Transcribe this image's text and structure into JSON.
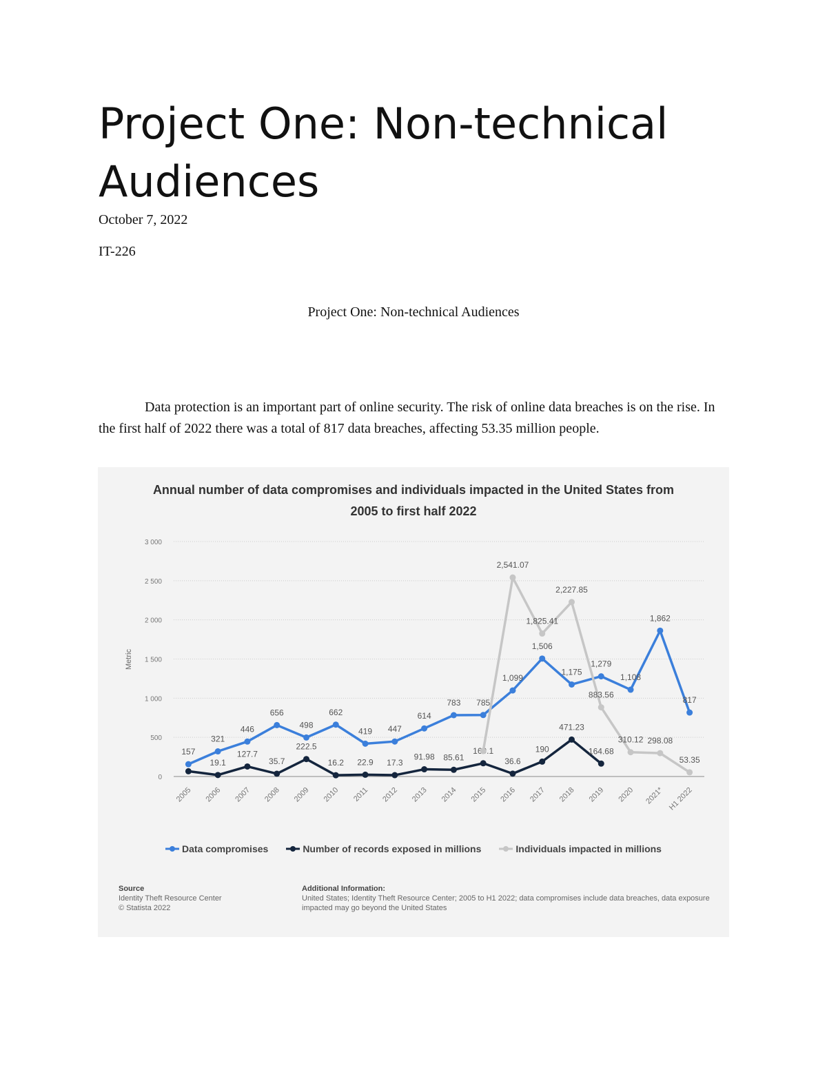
{
  "document": {
    "title": "Project One: Non-technical Audiences",
    "date": "October 7, 2022",
    "course": "IT-226",
    "heading": "Project One: Non-technical Audiences",
    "paragraph": "Data protection is an important part of online security. The risk of online data breaches is on the rise. In the first half of 2022 there was a total of 817 data breaches, affecting 53.35 million people."
  },
  "chart_data": {
    "type": "line",
    "title": "Annual number of data compromises and individuals impacted in the United States from 2005 to first half 2022",
    "y_label": "Metric",
    "categories": [
      "2005",
      "2006",
      "2007",
      "2008",
      "2009",
      "2010",
      "2011",
      "2012",
      "2013",
      "2014",
      "2015",
      "2016",
      "2017",
      "2018",
      "2019",
      "2020",
      "2021*",
      "H1 2022"
    ],
    "ylim": [
      0,
      3000
    ],
    "yticks": [
      0,
      500,
      {
        "value": 1000,
        "label": "1 000"
      },
      {
        "value": 1500,
        "label": "1 500"
      },
      {
        "value": 2000,
        "label": "2 000"
      },
      {
        "value": 2500,
        "label": "2 500"
      },
      {
        "value": 3000,
        "label": "3 000"
      }
    ],
    "grid": true,
    "series": [
      {
        "name": "Data compromises",
        "color": "#3b7fdb",
        "values": [
          157,
          321,
          446,
          656,
          498,
          662,
          419,
          447,
          614,
          783,
          785,
          1099,
          1506,
          1175,
          1279,
          1108,
          1862,
          817
        ],
        "value_labels": [
          "157",
          "321",
          "446",
          "656",
          "498",
          "662",
          "419",
          "447",
          "614",
          "783",
          "785",
          "1,099",
          "1,506",
          "1,175",
          "1,279",
          "1,108",
          "1,862",
          "817"
        ]
      },
      {
        "name": "Number of records exposed in millions",
        "color": "#14253d",
        "values": [
          66.9,
          19.1,
          127.7,
          35.7,
          222.5,
          16.2,
          22.9,
          17.3,
          91.98,
          85.61,
          169.1,
          36.6,
          190,
          471.23,
          164.68,
          null,
          null,
          null
        ],
        "value_labels": [
          null,
          "19.1",
          "127.7",
          "35.7",
          "222.5",
          "16.2",
          "22.9",
          "17.3",
          "91.98",
          "85.61",
          "169.1",
          "36.6",
          "190",
          "471.23",
          "164.68",
          null,
          null,
          null
        ]
      },
      {
        "name": "Individuals impacted in millions",
        "color": "#c6c6c6",
        "values": [
          null,
          null,
          null,
          null,
          null,
          null,
          null,
          null,
          null,
          null,
          325,
          2541.07,
          1825.41,
          2227.85,
          883.56,
          310.12,
          298.08,
          53.35
        ],
        "value_labels": [
          null,
          null,
          null,
          null,
          null,
          null,
          null,
          null,
          null,
          null,
          null,
          "2,541.07",
          "1,825.41",
          "2,227.85",
          "883.56",
          "310.12",
          "298.08",
          "53.35"
        ]
      }
    ],
    "source_label": "Source",
    "source": "Identity Theft Resource Center",
    "copyright": "© Statista 2022",
    "info_label": "Additional Information:",
    "info": [
      "United States; Identity Theft Resource Center; 2005 to H1 2022; data compromises include data breaches, data exposure",
      "impacted may go beyond the United States"
    ]
  }
}
